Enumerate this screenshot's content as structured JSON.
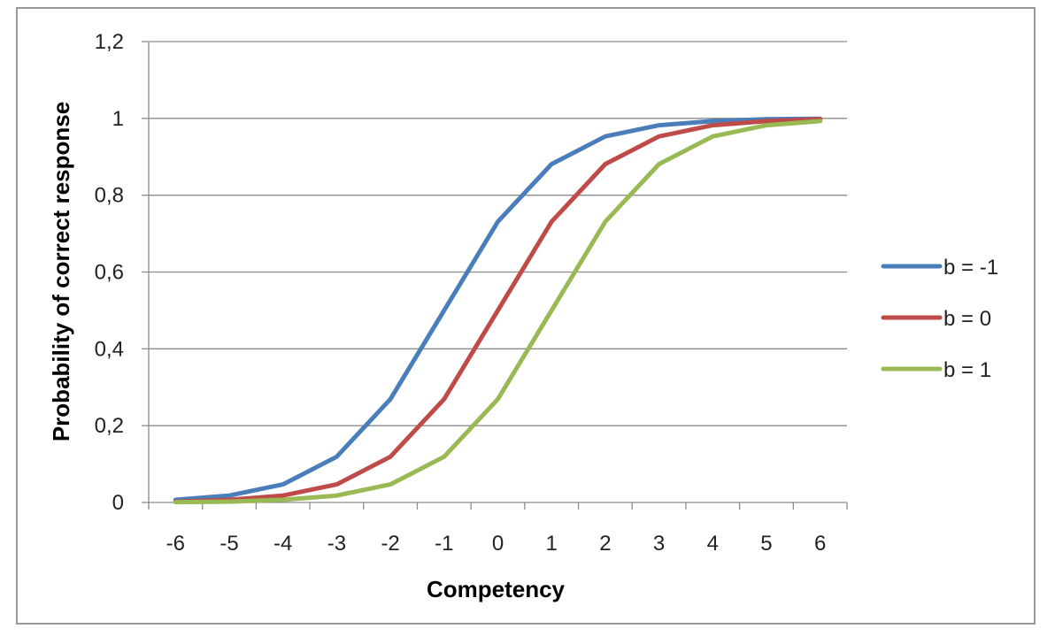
{
  "chart_data": {
    "type": "line",
    "title": "",
    "xlabel": "Competency",
    "ylabel": "Probability of correct response",
    "x": [
      -6,
      -5,
      -4,
      -3,
      -2,
      -1,
      0,
      1,
      2,
      3,
      4,
      5,
      6
    ],
    "x_tick_labels": [
      "-6",
      "-5",
      "-4",
      "-3",
      "-2",
      "-1",
      "0",
      "1",
      "2",
      "3",
      "4",
      "5",
      "6"
    ],
    "y_tick_labels": [
      "0",
      "0,2",
      "0,4",
      "0,6",
      "0,8",
      "1",
      "1,2"
    ],
    "y_ticks": [
      0,
      0.2,
      0.4,
      0.6,
      0.8,
      1,
      1.2
    ],
    "ylim": [
      0,
      1.2
    ],
    "grid": "horizontal",
    "legend_position": "right",
    "series": [
      {
        "name": "b = -1",
        "color": "#4a7ebb",
        "values": [
          0.007,
          0.018,
          0.047,
          0.119,
          0.269,
          0.5,
          0.731,
          0.881,
          0.953,
          0.982,
          0.993,
          0.998,
          0.999
        ]
      },
      {
        "name": "b = 0",
        "color": "#be4b48",
        "values": [
          0.002,
          0.007,
          0.018,
          0.047,
          0.119,
          0.269,
          0.5,
          0.731,
          0.881,
          0.953,
          0.982,
          0.993,
          0.998
        ]
      },
      {
        "name": "b = 1",
        "color": "#98b954",
        "values": [
          0.001,
          0.002,
          0.007,
          0.018,
          0.047,
          0.119,
          0.269,
          0.5,
          0.731,
          0.881,
          0.953,
          0.982,
          0.993
        ]
      }
    ]
  }
}
